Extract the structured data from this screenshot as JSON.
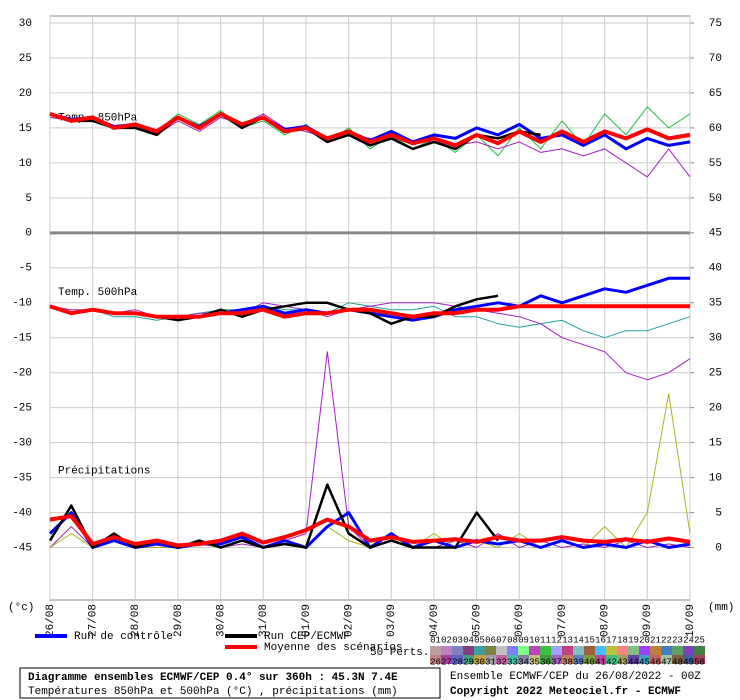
{
  "chart_data": {
    "type": "line",
    "title": "Diagramme ensembles ECMWF/CEP 0.4° sur 360h : 45.3N 7.4E",
    "subtitle": "Températures 850hPa et 500hPa (°C) , précipitations (mm)",
    "run_info": "Ensemble ECMWF/CEP du 26/08/2022 - 00Z",
    "copyright": "Copyright 2022 Meteociel.fr - ECMWF",
    "y_label": "(°c)",
    "y2_label": "(mm)",
    "annotations": [
      {
        "text": "Temp. 850hPa",
        "y": 16.5
      },
      {
        "text": "Temp. 500hPa",
        "y": -8.5
      },
      {
        "text": "Précipitations",
        "y": -34
      }
    ],
    "perturbations_label": "50 Perts.",
    "perturbations": [
      {
        "label": "01",
        "color": "#c0a0a0"
      },
      {
        "label": "02",
        "color": "#c080c0"
      },
      {
        "label": "03",
        "color": "#8080c0"
      },
      {
        "label": "04",
        "color": "#804080"
      },
      {
        "label": "05",
        "color": "#40a0a0"
      },
      {
        "label": "06",
        "color": "#808040"
      },
      {
        "label": "07",
        "color": "#c0c0c0"
      },
      {
        "label": "08",
        "color": "#8080ff"
      },
      {
        "label": "09",
        "color": "#80ff80"
      },
      {
        "label": "10",
        "color": "#c040c0"
      },
      {
        "label": "11",
        "color": "#40c040"
      },
      {
        "label": "12",
        "color": "#a0a0ff"
      },
      {
        "label": "13",
        "color": "#c04080"
      },
      {
        "label": "14",
        "color": "#80c0c0"
      },
      {
        "label": "15",
        "color": "#a06040"
      },
      {
        "label": "16",
        "color": "#40c0ff"
      },
      {
        "label": "17",
        "color": "#c0c040"
      },
      {
        "label": "18",
        "color": "#ff8080"
      },
      {
        "label": "19",
        "color": "#80c080"
      },
      {
        "label": "20",
        "color": "#a040ff"
      },
      {
        "label": "21",
        "color": "#c08040"
      },
      {
        "label": "22",
        "color": "#4080c0"
      },
      {
        "label": "23",
        "color": "#60a060"
      },
      {
        "label": "24",
        "color": "#8040c0"
      },
      {
        "label": "25",
        "color": "#408040"
      },
      {
        "label": "26",
        "color": "#c08080"
      },
      {
        "label": "27",
        "color": "#a040a0"
      },
      {
        "label": "28",
        "color": "#6060c0"
      },
      {
        "label": "29",
        "color": "#40a080"
      },
      {
        "label": "30",
        "color": "#c0a040"
      },
      {
        "label": "31",
        "color": "#a0a0a0"
      },
      {
        "label": "32",
        "color": "#c060a0"
      },
      {
        "label": "33",
        "color": "#40c0a0"
      },
      {
        "label": "34",
        "color": "#8080a0"
      },
      {
        "label": "35",
        "color": "#c0c080"
      },
      {
        "label": "36",
        "color": "#40a040"
      },
      {
        "label": "37",
        "color": "#a060c0"
      },
      {
        "label": "38",
        "color": "#c08060"
      },
      {
        "label": "39",
        "color": "#6080c0"
      },
      {
        "label": "40",
        "color": "#80a040"
      },
      {
        "label": "41",
        "color": "#c040a0"
      },
      {
        "label": "42",
        "color": "#40c080"
      },
      {
        "label": "43",
        "color": "#a0a060"
      },
      {
        "label": "44",
        "color": "#6040a0"
      },
      {
        "label": "45",
        "color": "#40a0c0"
      },
      {
        "label": "46",
        "color": "#c06060"
      },
      {
        "label": "47",
        "color": "#a0c0a0"
      },
      {
        "label": "48",
        "color": "#806040"
      },
      {
        "label": "49",
        "color": "#4060a0"
      },
      {
        "label": "50",
        "color": "#a04060"
      }
    ],
    "x": [
      0,
      12,
      24,
      36,
      48,
      60,
      72,
      84,
      96,
      108,
      120,
      132,
      144,
      156,
      168,
      180,
      192,
      204,
      216,
      228,
      240,
      252,
      264,
      276,
      288,
      300,
      312,
      324,
      336,
      348,
      360
    ],
    "xlim": [
      0,
      360
    ],
    "xticks": [
      {
        "value": 0,
        "label": "26/08"
      },
      {
        "value": 24,
        "label": "27/08"
      },
      {
        "value": 48,
        "label": "28/08"
      },
      {
        "value": 72,
        "label": "29/08"
      },
      {
        "value": 96,
        "label": "30/08"
      },
      {
        "value": 120,
        "label": "31/08"
      },
      {
        "value": 144,
        "label": "01/09"
      },
      {
        "value": 168,
        "label": "02/09"
      },
      {
        "value": 192,
        "label": "03/09"
      },
      {
        "value": 216,
        "label": "04/09"
      },
      {
        "value": 240,
        "label": "05/09"
      },
      {
        "value": 264,
        "label": "06/09"
      },
      {
        "value": 288,
        "label": "07/09"
      },
      {
        "value": 312,
        "label": "08/09"
      },
      {
        "value": 336,
        "label": "09/09"
      },
      {
        "value": 360,
        "label": "10/09"
      }
    ],
    "ylim": [
      -52.5,
      31
    ],
    "yticks": [
      30,
      25,
      20,
      15,
      10,
      5,
      0,
      -5,
      -10,
      -15,
      -20,
      -25,
      -30,
      -35,
      -40,
      -45
    ],
    "y2lim": [
      -7.5,
      76
    ],
    "y2ticks": [
      75,
      70,
      65,
      60,
      55,
      50,
      45,
      40,
      35,
      30,
      25,
      20,
      15,
      10,
      5,
      0
    ],
    "divider": 0,
    "grid": true,
    "series": [
      {
        "color": "#20c040",
        "width": 1,
        "values": [
          17,
          16,
          16,
          15,
          15,
          14.5,
          17,
          15.5,
          17.5,
          15,
          16,
          14,
          15.5,
          13,
          15,
          12,
          14,
          12,
          13.5,
          11.5,
          14,
          11,
          15,
          12,
          16,
          12.5,
          17,
          14,
          18,
          15,
          17
        ]
      },
      {
        "color": "#a020c0",
        "width": 1,
        "values": [
          16.5,
          16,
          16.5,
          15,
          15.5,
          14,
          16,
          14.5,
          16.5,
          15.5,
          17,
          15,
          14.5,
          13.5,
          14,
          13.5,
          13.5,
          13,
          13,
          12.5,
          13,
          12,
          13,
          11.5,
          12,
          11,
          12,
          10,
          8,
          12,
          8
        ]
      },
      {
        "color": "#20a0a0",
        "width": 1,
        "values": [
          -10.5,
          -11.5,
          -11,
          -12,
          -12,
          -12.5,
          -12,
          -11.5,
          -11,
          -11,
          -10.5,
          -11,
          -11,
          -11.5,
          -10,
          -10.5,
          -11,
          -11,
          -10.5,
          -12,
          -12,
          -13,
          -13.5,
          -13,
          -12.5,
          -14,
          -15,
          -14,
          -14,
          -13,
          -12
        ]
      },
      {
        "color": "#a020c0",
        "width": 1,
        "values": [
          -10.5,
          -11,
          -11,
          -11.5,
          -11,
          -12,
          -12,
          -11.5,
          -11.5,
          -11.5,
          -10,
          -10.5,
          -11,
          -12,
          -11,
          -10.5,
          -10,
          -10,
          -10,
          -10.5,
          -11,
          -11.5,
          -12,
          -13,
          -15,
          -16,
          -17,
          -20,
          -21,
          -20,
          -18
        ]
      },
      {
        "color": "#a020c0",
        "width": 1,
        "axis": "y2",
        "values": [
          0,
          3,
          0,
          1,
          0,
          0.5,
          0,
          1,
          0,
          0.5,
          0,
          1,
          2,
          28,
          3,
          0,
          1,
          0,
          0,
          1,
          0,
          2,
          0,
          1,
          0,
          0.5,
          0,
          1,
          0,
          0.5,
          0
        ]
      },
      {
        "color": "#b0b020",
        "width": 1,
        "axis": "y2",
        "values": [
          0,
          2,
          0,
          1,
          0,
          0,
          0,
          0.5,
          0,
          1,
          0,
          0.5,
          0,
          3,
          1,
          0,
          1,
          0,
          2,
          0,
          1,
          0,
          2,
          0,
          1,
          0,
          3,
          0,
          5,
          22,
          2
        ]
      },
      {
        "name": "Run de contrôle",
        "color": "#0000ff",
        "width": 3,
        "values": [
          17,
          16.2,
          16.5,
          15.2,
          15.5,
          14.3,
          16.5,
          15.2,
          17,
          15.5,
          16.5,
          14.8,
          15.2,
          13.5,
          14.5,
          13.2,
          14.5,
          13,
          14,
          13.5,
          15,
          14,
          15.5,
          13.5,
          14,
          12.5,
          14,
          12,
          13.5,
          12.5,
          13
        ]
      },
      {
        "name": "Run de contrôle",
        "color": "#0000ff",
        "width": 3,
        "values": [
          -10.5,
          -11.5,
          -11,
          -11.5,
          -11.5,
          -12,
          -12,
          -12,
          -11.5,
          -11,
          -10.5,
          -11.5,
          -11,
          -11.5,
          -11,
          -11.5,
          -12,
          -12.5,
          -12,
          -11,
          -10.5,
          -10,
          -10.5,
          -9,
          -10,
          -9,
          -8,
          -8.5,
          -7.5,
          -6.5,
          -6.5
        ]
      },
      {
        "name": "Run de contrôle",
        "color": "#0000ff",
        "width": 3,
        "axis": "y2",
        "values": [
          2,
          5,
          0,
          1,
          0,
          0.5,
          0,
          0.5,
          0.5,
          1.5,
          0,
          1,
          0,
          3,
          5,
          0,
          2,
          0,
          1,
          0,
          1,
          0.5,
          1,
          0,
          1,
          0,
          0.5,
          0,
          1,
          0,
          0.5
        ]
      },
      {
        "name": "Run CEP/ECMWF",
        "color": "#000000",
        "width": 2.5,
        "values": [
          17,
          16,
          16,
          15,
          15,
          14,
          16.5,
          15,
          17,
          15,
          16.5,
          14.5,
          15,
          13,
          14,
          12.5,
          13.5,
          12,
          13,
          12,
          14,
          13.5,
          14.5,
          14,
          null,
          null,
          null,
          null,
          null,
          null,
          null
        ]
      },
      {
        "name": "Run CEP/ECMWF",
        "color": "#000000",
        "width": 2.5,
        "values": [
          -10.5,
          -11.5,
          -11,
          -11.5,
          -11.5,
          -12,
          -12.5,
          -12,
          -11,
          -12,
          -11,
          -10.5,
          -10,
          -10,
          -11,
          -11.5,
          -13,
          -12,
          -12,
          -10.5,
          -9.5,
          -9,
          null,
          null,
          null,
          null,
          null,
          null,
          null,
          null,
          null
        ]
      },
      {
        "name": "Run CEP/ECMWF",
        "color": "#000000",
        "width": 2.5,
        "axis": "y2",
        "values": [
          1,
          6,
          0,
          2,
          0,
          1,
          0,
          1,
          0,
          1,
          0,
          0.5,
          0,
          9,
          2,
          0,
          1,
          0,
          0,
          0,
          5,
          1,
          null,
          null,
          null,
          null,
          null,
          null,
          null,
          null,
          null
        ]
      },
      {
        "name": "Moyenne des scénarios",
        "color": "#ff0000",
        "width": 4,
        "values": [
          17,
          16,
          16.5,
          15,
          15.5,
          14.5,
          16.5,
          15,
          17,
          15.5,
          16.5,
          14.5,
          15,
          13.5,
          14.5,
          13,
          14,
          12.8,
          13.5,
          12.5,
          14,
          12.8,
          14.5,
          13,
          14.5,
          13,
          14.5,
          13.5,
          14.8,
          13.5,
          14
        ]
      },
      {
        "name": "Moyenne des scénarios",
        "color": "#ff0000",
        "width": 4,
        "values": [
          -10.5,
          -11.5,
          -11,
          -11.5,
          -11.5,
          -12,
          -12,
          -12,
          -11.5,
          -11.5,
          -11,
          -12,
          -11.5,
          -11.5,
          -11,
          -11,
          -11.5,
          -12,
          -11.5,
          -11.5,
          -11,
          -11,
          -10.5,
          -10.5,
          -10.5,
          -10.5,
          -10.5,
          -10.5,
          -10.5,
          -10.5,
          -10.5
        ]
      },
      {
        "name": "Moyenne des scénarios",
        "color": "#ff0000",
        "width": 4,
        "axis": "y2",
        "values": [
          4,
          4.5,
          0.5,
          1.5,
          0.5,
          1,
          0.3,
          0.5,
          1,
          2,
          0.7,
          1.5,
          2.5,
          4,
          3,
          1,
          1.5,
          0.8,
          1,
          1.2,
          0.8,
          1.5,
          1,
          1,
          1.5,
          1,
          0.8,
          1.2,
          0.8,
          1.3,
          0.8
        ]
      }
    ]
  }
}
